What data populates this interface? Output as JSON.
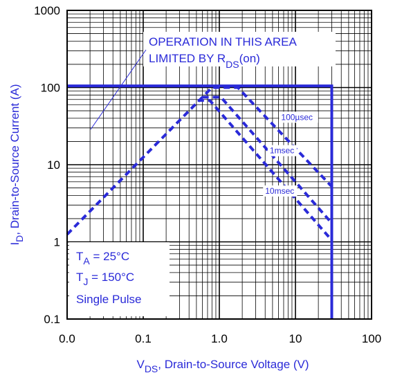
{
  "chart_data": {
    "type": "line",
    "title": "",
    "xlabel": "V",
    "xlabel_sub": "DS",
    "xlabel_rest": ", Drain-to-Source Voltage (V)",
    "ylabel": "I",
    "ylabel_sub": "D",
    "ylabel_rest": ",  Drain-to-Source Current (A)",
    "x_scale": "log",
    "y_scale": "log",
    "xlim": [
      0.01,
      100
    ],
    "ylim": [
      0.1,
      1000
    ],
    "x_tick_values": [
      0.01,
      0.1,
      1,
      10,
      100
    ],
    "x_tick_labels": [
      "0.0",
      "0.1",
      "1.0",
      "10",
      "100"
    ],
    "y_tick_values": [
      0.1,
      1,
      10,
      100,
      1000
    ],
    "y_tick_labels": [
      "0.1",
      "1",
      "10",
      "100",
      "1000"
    ],
    "grid": true,
    "annotation": {
      "line1": "OPERATION IN THIS AREA",
      "line2_prefix": "LIMITED BY R",
      "line2_sub": "DS",
      "line2_suffix": "(on)"
    },
    "conditions": {
      "ta_symbol": "T",
      "ta_sub": "A",
      "ta_value": " = 25°C",
      "tj_symbol": "T",
      "tj_sub": "J",
      "tj_value": " = 150°C",
      "pulse": "Single Pulse"
    },
    "boundary": {
      "current_limit_A": 105,
      "voltage_limit_V": 30,
      "style": "solid"
    },
    "series": [
      {
        "name": "100µsec",
        "style": "dashed",
        "points": [
          [
            0.01,
            1.25
          ],
          [
            0.8,
            100
          ],
          [
            1.75,
            100
          ],
          [
            30,
            5.2
          ]
        ]
      },
      {
        "name": "1msec",
        "style": "dashed",
        "points": [
          [
            0.6,
            75
          ],
          [
            1.05,
            75
          ],
          [
            30,
            1.75
          ]
        ]
      },
      {
        "name": "10msec",
        "style": "dashed",
        "points": [
          [
            0.52,
            68
          ],
          [
            0.75,
            68
          ],
          [
            30,
            1.05
          ]
        ]
      }
    ],
    "series_label_anchor_x": [
      6.5,
      4.6,
      4.0
    ],
    "series_label_anchor_y": [
      38,
      14,
      4.2
    ],
    "colors": {
      "curve": "#2a2ad8",
      "grid": "#000000",
      "text": "#2a2ad8",
      "ticks": "#000000"
    }
  }
}
